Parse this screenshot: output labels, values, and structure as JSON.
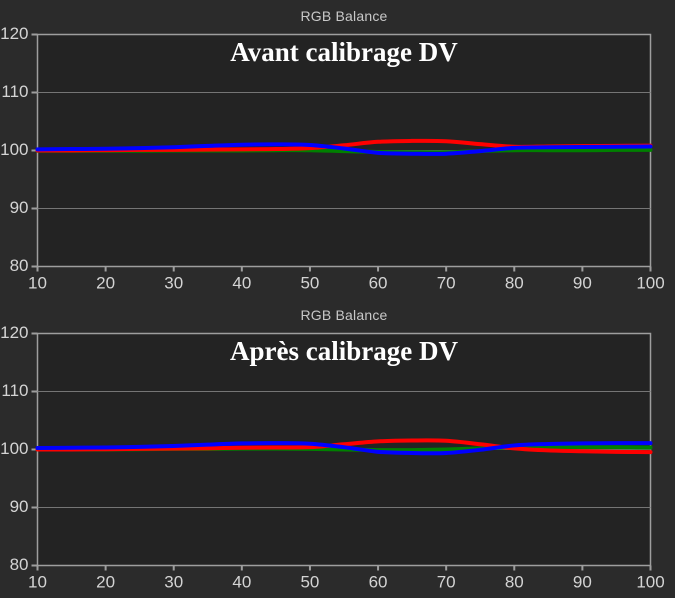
{
  "page": {
    "background": "#2b2b2b",
    "plot_background": "#232323",
    "axis_color": "#9e9e9e",
    "grid_color": "#757575",
    "tick_label_color": "#d4d4d4",
    "title_color": "#c8c8c8",
    "inner_title_color": "#ffffff"
  },
  "chart_data": [
    {
      "type": "line",
      "title": "RGB Balance",
      "inner_title": "Avant calibrage DV",
      "xlim": [
        10,
        100
      ],
      "ylim": [
        80,
        120
      ],
      "xticks": [
        10,
        20,
        30,
        40,
        50,
        60,
        70,
        80,
        90,
        100
      ],
      "yticks": [
        80,
        90,
        100,
        110,
        120
      ],
      "gridlines": [
        90,
        100,
        110
      ],
      "grid": "horizontal",
      "legend": "none",
      "x": [
        10,
        15,
        20,
        25,
        30,
        35,
        40,
        45,
        50,
        55,
        60,
        65,
        70,
        75,
        80,
        85,
        90,
        95,
        100
      ],
      "series": [
        {
          "name": "Green",
          "color": "#008000",
          "values": [
            99.95,
            99.95,
            99.95,
            99.95,
            100.0,
            100.0,
            100.0,
            100.05,
            100.05,
            99.9,
            99.75,
            99.7,
            99.7,
            99.9,
            100.05,
            100.05,
            100.05,
            100.1,
            100.1
          ]
        },
        {
          "name": "Red",
          "color": "#ff0000",
          "values": [
            100.0,
            100.0,
            100.05,
            100.1,
            100.1,
            100.15,
            100.2,
            100.25,
            100.4,
            100.9,
            101.5,
            101.65,
            101.6,
            101.1,
            100.65,
            100.7,
            100.75,
            100.8,
            100.85
          ]
        },
        {
          "name": "Blue",
          "color": "#0000ff",
          "values": [
            100.2,
            100.25,
            100.3,
            100.4,
            100.55,
            100.8,
            101.0,
            101.05,
            100.95,
            100.35,
            99.6,
            99.45,
            99.45,
            99.9,
            100.45,
            100.55,
            100.6,
            100.65,
            100.7
          ]
        }
      ]
    },
    {
      "type": "line",
      "title": "RGB Balance",
      "inner_title": "Après calibrage DV",
      "xlim": [
        10,
        100
      ],
      "ylim": [
        80,
        120
      ],
      "xticks": [
        10,
        20,
        30,
        40,
        50,
        60,
        70,
        80,
        90,
        100
      ],
      "yticks": [
        80,
        90,
        100,
        110,
        120
      ],
      "gridlines": [
        90,
        100,
        110
      ],
      "grid": "horizontal",
      "legend": "none",
      "x": [
        10,
        15,
        20,
        25,
        30,
        35,
        40,
        45,
        50,
        55,
        60,
        65,
        70,
        75,
        80,
        85,
        90,
        95,
        100
      ],
      "series": [
        {
          "name": "Green",
          "color": "#008000",
          "values": [
            100.0,
            100.0,
            100.0,
            100.05,
            100.1,
            100.1,
            100.15,
            100.15,
            100.1,
            100.0,
            99.9,
            99.9,
            100.0,
            100.2,
            100.35,
            100.4,
            100.4,
            100.4,
            100.35
          ]
        },
        {
          "name": "Red",
          "color": "#ff0000",
          "values": [
            100.0,
            100.0,
            100.05,
            100.1,
            100.15,
            100.2,
            100.3,
            100.35,
            100.4,
            100.9,
            101.4,
            101.55,
            101.5,
            100.9,
            100.2,
            99.85,
            99.7,
            99.6,
            99.55
          ]
        },
        {
          "name": "Blue",
          "color": "#0000ff",
          "values": [
            100.25,
            100.3,
            100.35,
            100.45,
            100.6,
            100.85,
            101.05,
            101.1,
            101.0,
            100.4,
            99.6,
            99.4,
            99.4,
            99.95,
            100.7,
            100.95,
            101.05,
            101.1,
            101.1
          ]
        }
      ]
    }
  ]
}
